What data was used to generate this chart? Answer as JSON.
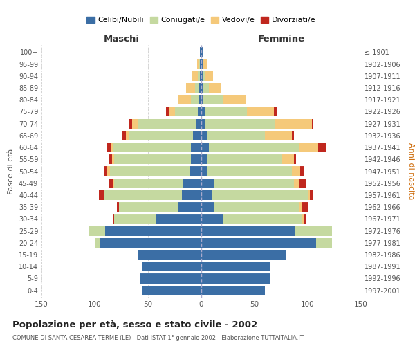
{
  "age_groups": [
    "0-4",
    "5-9",
    "10-14",
    "15-19",
    "20-24",
    "25-29",
    "30-34",
    "35-39",
    "40-44",
    "45-49",
    "50-54",
    "55-59",
    "60-64",
    "65-69",
    "70-74",
    "75-79",
    "80-84",
    "85-89",
    "90-94",
    "95-99",
    "100+"
  ],
  "birth_years": [
    "1997-2001",
    "1992-1996",
    "1987-1991",
    "1982-1986",
    "1977-1981",
    "1972-1976",
    "1967-1971",
    "1962-1966",
    "1957-1961",
    "1952-1956",
    "1947-1951",
    "1942-1946",
    "1937-1941",
    "1932-1936",
    "1927-1931",
    "1922-1926",
    "1917-1921",
    "1912-1916",
    "1907-1911",
    "1902-1906",
    "≤ 1901"
  ],
  "colors": {
    "celibi": "#3b6ea5",
    "coniugati": "#c5d9a0",
    "vedovi": "#f5c97a",
    "divorziati": "#c0271e"
  },
  "maschi": {
    "celibi": [
      55,
      58,
      55,
      60,
      95,
      90,
      42,
      22,
      18,
      17,
      11,
      10,
      10,
      8,
      5,
      3,
      2,
      2,
      1,
      1,
      1
    ],
    "coniugati": [
      0,
      0,
      0,
      0,
      5,
      15,
      40,
      55,
      73,
      65,
      75,
      72,
      73,
      60,
      55,
      22,
      8,
      4,
      2,
      1,
      0
    ],
    "vedovi": [
      0,
      0,
      0,
      0,
      0,
      0,
      0,
      0,
      0,
      1,
      2,
      2,
      2,
      3,
      5,
      5,
      12,
      8,
      6,
      2,
      0
    ],
    "divorziati": [
      0,
      0,
      0,
      0,
      0,
      0,
      1,
      2,
      5,
      4,
      3,
      3,
      4,
      3,
      3,
      3,
      0,
      0,
      0,
      0,
      0
    ]
  },
  "femmine": {
    "celibi": [
      60,
      65,
      65,
      80,
      108,
      88,
      20,
      12,
      10,
      12,
      5,
      5,
      7,
      5,
      4,
      3,
      2,
      2,
      1,
      1,
      1
    ],
    "coniugati": [
      0,
      0,
      0,
      0,
      15,
      35,
      75,
      80,
      90,
      75,
      80,
      70,
      85,
      55,
      65,
      40,
      18,
      5,
      2,
      1,
      0
    ],
    "vedovi": [
      0,
      0,
      0,
      0,
      0,
      0,
      1,
      2,
      2,
      5,
      8,
      12,
      18,
      25,
      35,
      25,
      22,
      12,
      8,
      3,
      1
    ],
    "divorziati": [
      0,
      0,
      0,
      0,
      0,
      0,
      2,
      6,
      3,
      6,
      3,
      2,
      7,
      2,
      1,
      3,
      0,
      0,
      0,
      0,
      0
    ]
  },
  "title": "Popolazione per età, sesso e stato civile - 2002",
  "subtitle": "COMUNE DI SANTA CESAREA TERME (LE) - Dati ISTAT 1° gennaio 2002 - Elaborazione TUTTAITALIA.IT",
  "xlabel_left": "Maschi",
  "xlabel_right": "Femmine",
  "ylabel_left": "Fasce di età",
  "ylabel_right": "Anni di nascita",
  "legend_labels": [
    "Celibi/Nubili",
    "Coniugati/e",
    "Vedovi/e",
    "Divorziati/e"
  ],
  "xlim": 150,
  "background_color": "#ffffff",
  "grid_color": "#cccccc"
}
